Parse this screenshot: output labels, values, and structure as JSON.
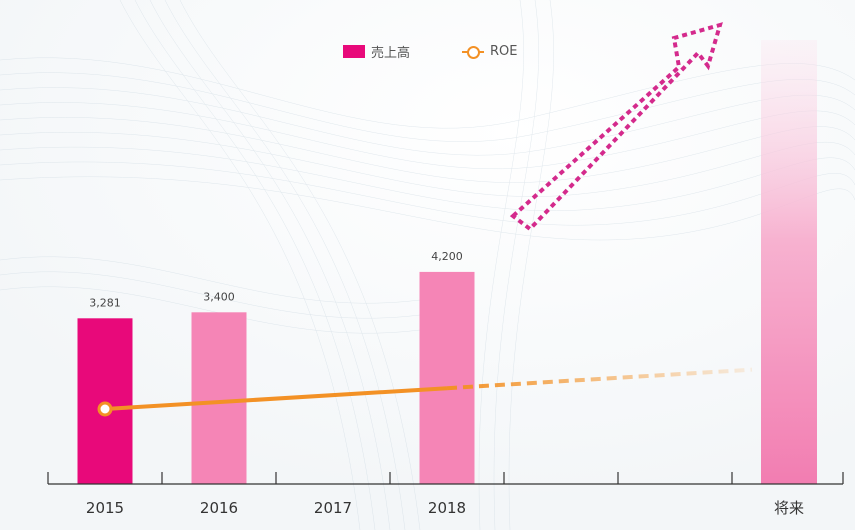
{
  "legend": {
    "bar_label": "売上高",
    "line_label": "ROE"
  },
  "colors": {
    "bar_actual": "#e8097a",
    "bar_pink": "#f585b6",
    "roe_line": "#f39125",
    "arrow": "#d42a8c",
    "axis": "#333333"
  },
  "chart_data": {
    "type": "bar",
    "categories": [
      "2015",
      "2016",
      "2017",
      "2018",
      "",
      "",
      "将来"
    ],
    "series": [
      {
        "name": "売上高",
        "values": [
          3281,
          3400,
          null,
          4200,
          null,
          null,
          null
        ],
        "labels": [
          "3,281",
          "3,400",
          "",
          "4,200",
          "",
          "",
          ""
        ]
      }
    ],
    "line_series": {
      "name": "ROE",
      "values": [
        1.0,
        null,
        null,
        1.4
      ],
      "projection": "dashed fading toward 将来"
    },
    "future_column": "将来",
    "annotation": "upward dashed arrow indicating growth",
    "title": "",
    "xlabel": "",
    "ylabel": "",
    "ylim": [
      0,
      8000
    ],
    "grid": false,
    "legend_position": "top"
  }
}
